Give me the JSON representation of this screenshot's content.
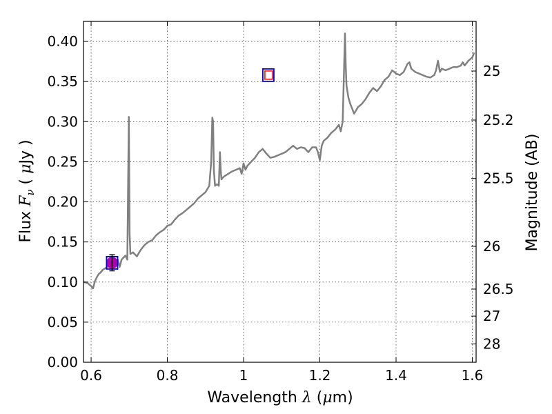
{
  "chart_data": {
    "type": "line",
    "title": "",
    "xlabel_parts": {
      "text": "Wavelength",
      "symbol": "λ",
      "unit_open": " (",
      "unit_mu": "μ",
      "unit_rest": "m)"
    },
    "ylabel_parts": {
      "text": "Flux",
      "symbol": "F",
      "sub": "ν",
      "unit_open": "( ",
      "unit_mu": "μ",
      "unit_rest": "Jy )"
    },
    "y2label": "Magnitude (AB)",
    "xlim": [
      0.58,
      1.61
    ],
    "ylim": [
      0.0,
      0.425
    ],
    "grid": true,
    "x_ticks": [
      0.6,
      0.8,
      1.0,
      1.2,
      1.4,
      1.6
    ],
    "x_tick_labels": [
      "0.6",
      "0.8",
      "1",
      "1.2",
      "1.4",
      "1.6"
    ],
    "y_ticks": [
      0.0,
      0.05,
      0.1,
      0.15,
      0.2,
      0.25,
      0.3,
      0.35,
      0.4
    ],
    "y_tick_labels": [
      "0.00",
      "0.05",
      "0.10",
      "0.15",
      "0.20",
      "0.25",
      "0.30",
      "0.35",
      "0.40"
    ],
    "y2_ticks": [
      25,
      25.2,
      25.5,
      26,
      26.5,
      27,
      28
    ],
    "y2_tick_labels": [
      "25",
      "25.2",
      "25.5",
      "26",
      "26.5",
      "27",
      "28"
    ],
    "series_color": "#808080",
    "spectrum": {
      "x": [
        0.58,
        0.59,
        0.6,
        0.605,
        0.61,
        0.615,
        0.62,
        0.625,
        0.63,
        0.64,
        0.65,
        0.66,
        0.67,
        0.675,
        0.68,
        0.69,
        0.695,
        0.697,
        0.699,
        0.701,
        0.703,
        0.71,
        0.72,
        0.73,
        0.74,
        0.75,
        0.76,
        0.77,
        0.78,
        0.79,
        0.8,
        0.81,
        0.82,
        0.83,
        0.84,
        0.85,
        0.86,
        0.87,
        0.88,
        0.89,
        0.9,
        0.91,
        0.915,
        0.918,
        0.92,
        0.922,
        0.925,
        0.93,
        0.935,
        0.938,
        0.94,
        0.942,
        0.945,
        0.95,
        0.96,
        0.97,
        0.98,
        0.99,
        0.995,
        1.0,
        1.005,
        1.01,
        1.02,
        1.03,
        1.04,
        1.05,
        1.06,
        1.07,
        1.08,
        1.09,
        1.1,
        1.11,
        1.12,
        1.13,
        1.14,
        1.15,
        1.16,
        1.17,
        1.18,
        1.19,
        1.195,
        1.2,
        1.205,
        1.21,
        1.22,
        1.23,
        1.24,
        1.25,
        1.255,
        1.26,
        1.263,
        1.266,
        1.268,
        1.27,
        1.275,
        1.28,
        1.29,
        1.3,
        1.31,
        1.32,
        1.33,
        1.34,
        1.35,
        1.36,
        1.37,
        1.38,
        1.39,
        1.4,
        1.41,
        1.42,
        1.43,
        1.435,
        1.44,
        1.45,
        1.46,
        1.47,
        1.48,
        1.49,
        1.5,
        1.505,
        1.51,
        1.515,
        1.52,
        1.53,
        1.54,
        1.55,
        1.56,
        1.57,
        1.575,
        1.58,
        1.59,
        1.6,
        1.605
      ],
      "y": [
        0.1,
        0.099,
        0.095,
        0.092,
        0.101,
        0.106,
        0.11,
        0.112,
        0.115,
        0.118,
        0.122,
        0.126,
        0.128,
        0.119,
        0.128,
        0.133,
        0.128,
        0.22,
        0.306,
        0.16,
        0.135,
        0.137,
        0.132,
        0.14,
        0.146,
        0.15,
        0.152,
        0.158,
        0.162,
        0.165,
        0.17,
        0.172,
        0.178,
        0.183,
        0.186,
        0.19,
        0.194,
        0.198,
        0.204,
        0.208,
        0.212,
        0.22,
        0.25,
        0.305,
        0.3,
        0.24,
        0.22,
        0.222,
        0.22,
        0.262,
        0.24,
        0.228,
        0.23,
        0.232,
        0.235,
        0.238,
        0.24,
        0.242,
        0.235,
        0.248,
        0.24,
        0.245,
        0.25,
        0.255,
        0.262,
        0.266,
        0.26,
        0.255,
        0.256,
        0.258,
        0.26,
        0.262,
        0.266,
        0.27,
        0.266,
        0.268,
        0.267,
        0.262,
        0.268,
        0.268,
        0.262,
        0.252,
        0.27,
        0.276,
        0.28,
        0.286,
        0.29,
        0.296,
        0.288,
        0.3,
        0.355,
        0.41,
        0.37,
        0.345,
        0.33,
        0.322,
        0.31,
        0.318,
        0.322,
        0.328,
        0.336,
        0.342,
        0.338,
        0.344,
        0.352,
        0.356,
        0.364,
        0.36,
        0.358,
        0.362,
        0.372,
        0.374,
        0.366,
        0.362,
        0.36,
        0.358,
        0.356,
        0.355,
        0.358,
        0.364,
        0.376,
        0.362,
        0.366,
        0.364,
        0.366,
        0.368,
        0.368,
        0.37,
        0.374,
        0.37,
        0.376,
        0.38,
        0.386
      ]
    },
    "photometry": [
      {
        "name": "point-1",
        "x": 0.655,
        "y": 0.124,
        "yerr": 0.01,
        "square_stroke": "#0000cc",
        "inner_square_stroke": "#0000cc",
        "fill": "#b000b0",
        "marker": "circle"
      },
      {
        "name": "point-2",
        "x": 1.065,
        "y": 0.358,
        "yerr": 0.0,
        "square_stroke": "#0000cc",
        "inner_square_stroke": "#ff0000",
        "fill": "none",
        "marker": "square"
      }
    ]
  }
}
